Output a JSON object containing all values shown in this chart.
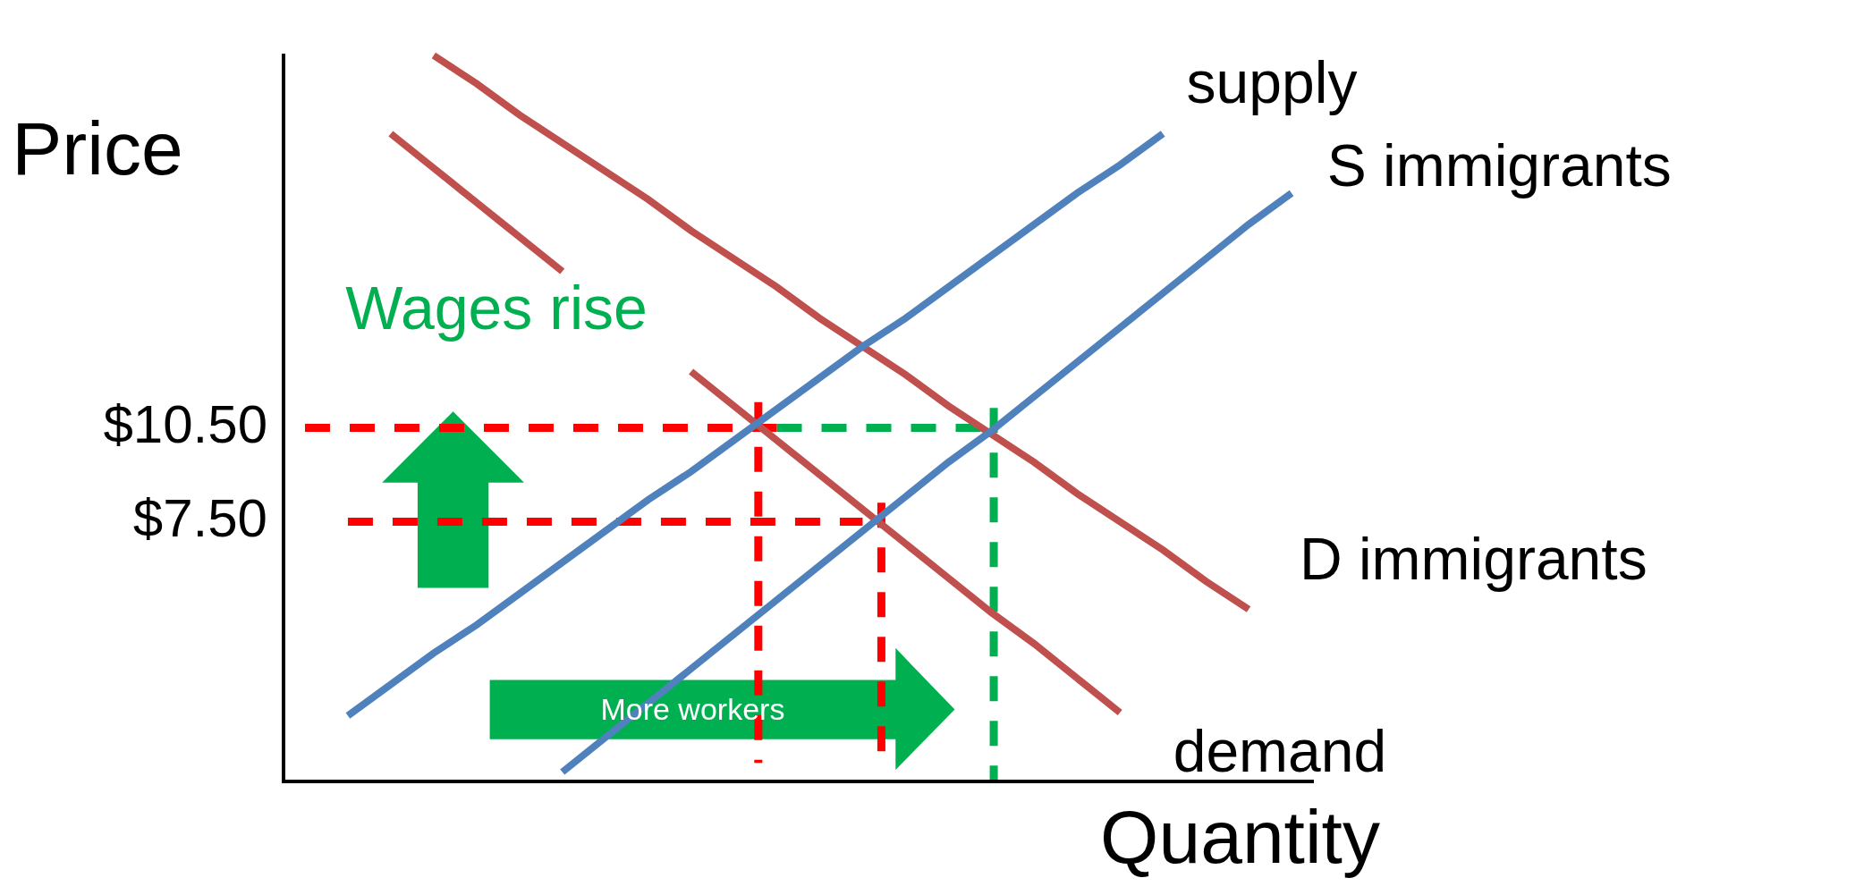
{
  "chart_data": {
    "type": "line",
    "xlabel": "Quantity",
    "ylabel": "Price",
    "categories": [
      null,
      null,
      null,
      null,
      null,
      null,
      null,
      null,
      null,
      null,
      null,
      null,
      null,
      null,
      null,
      null,
      null,
      null,
      null,
      null,
      null,
      null,
      null,
      null
    ],
    "ylim": [
      -0.8,
      22.4
    ],
    "yticks": [
      {
        "value": 10.5,
        "label": "$10.50"
      },
      {
        "value": 7.5,
        "label": "$7.50"
      }
    ],
    "tick_labels": "y",
    "grid": false,
    "legend": false,
    "marker": "none",
    "annotations": [
      "Wages rise",
      "More workers"
    ],
    "series": [
      {
        "name": "supply",
        "color": "#4f81bd",
        "values": [
          null,
          1.3,
          2.3,
          3.3,
          4.2,
          5.2,
          6.2,
          7.2,
          8.2,
          9.1,
          10.1,
          11.1,
          12.1,
          13.1,
          14.0,
          15.0,
          16.0,
          17.0,
          18.0,
          18.9,
          19.9,
          null,
          null,
          null
        ]
      },
      {
        "name": "S immigrants",
        "color": "#4f81bd",
        "values": [
          null,
          null,
          null,
          null,
          null,
          null,
          -0.5,
          0.6,
          1.7,
          2.8,
          3.9,
          5.0,
          6.1,
          7.2,
          8.3,
          9.4,
          10.4,
          11.5,
          12.6,
          13.7,
          14.8,
          15.9,
          17.0,
          18.0
        ]
      },
      {
        "name": "D immigrants",
        "color": "#c0504d",
        "values": [
          null,
          null,
          null,
          22.4,
          21.5,
          20.5,
          19.6,
          18.7,
          17.8,
          16.8,
          15.9,
          15.0,
          14.0,
          13.1,
          12.2,
          11.2,
          10.3,
          9.4,
          8.4,
          7.5,
          6.6,
          5.6,
          4.7,
          null
        ]
      },
      {
        "name": "demand",
        "color": "#c0504d",
        "values": [
          null,
          null,
          19.9,
          18.8,
          17.7,
          16.6,
          15.5,
          null,
          null,
          12.3,
          11.2,
          10.1,
          9.0,
          7.9,
          6.8,
          5.7,
          4.6,
          3.6,
          2.5,
          1.4,
          null,
          null,
          null,
          null
        ]
      },
      {
        "color": "#ff0000",
        "line_style": "dashed",
        "values": [
          10.5,
          10.5,
          10.5,
          10.5,
          10.5,
          10.5,
          10.5,
          10.5,
          10.5,
          10.5,
          10.5,
          10.5,
          null,
          null,
          null,
          null,
          null,
          null,
          null,
          null,
          null,
          null,
          null,
          null
        ]
      },
      {
        "color": "#00b050",
        "line_style": "dashed",
        "values": [
          null,
          null,
          null,
          null,
          null,
          null,
          null,
          null,
          null,
          null,
          null,
          10.5,
          10.5,
          10.5,
          10.5,
          10.5,
          10.5,
          null,
          null,
          null,
          null,
          null,
          null,
          null
        ]
      },
      {
        "color": "#ff0000",
        "line_style": "dashed",
        "values": [
          null,
          7.5,
          7.5,
          7.5,
          7.5,
          7.5,
          7.5,
          7.5,
          7.5,
          7.5,
          7.5,
          7.5,
          7.5,
          7.5,
          null,
          null,
          null,
          null,
          null,
          null,
          null,
          null,
          null,
          null
        ]
      }
    ]
  }
}
